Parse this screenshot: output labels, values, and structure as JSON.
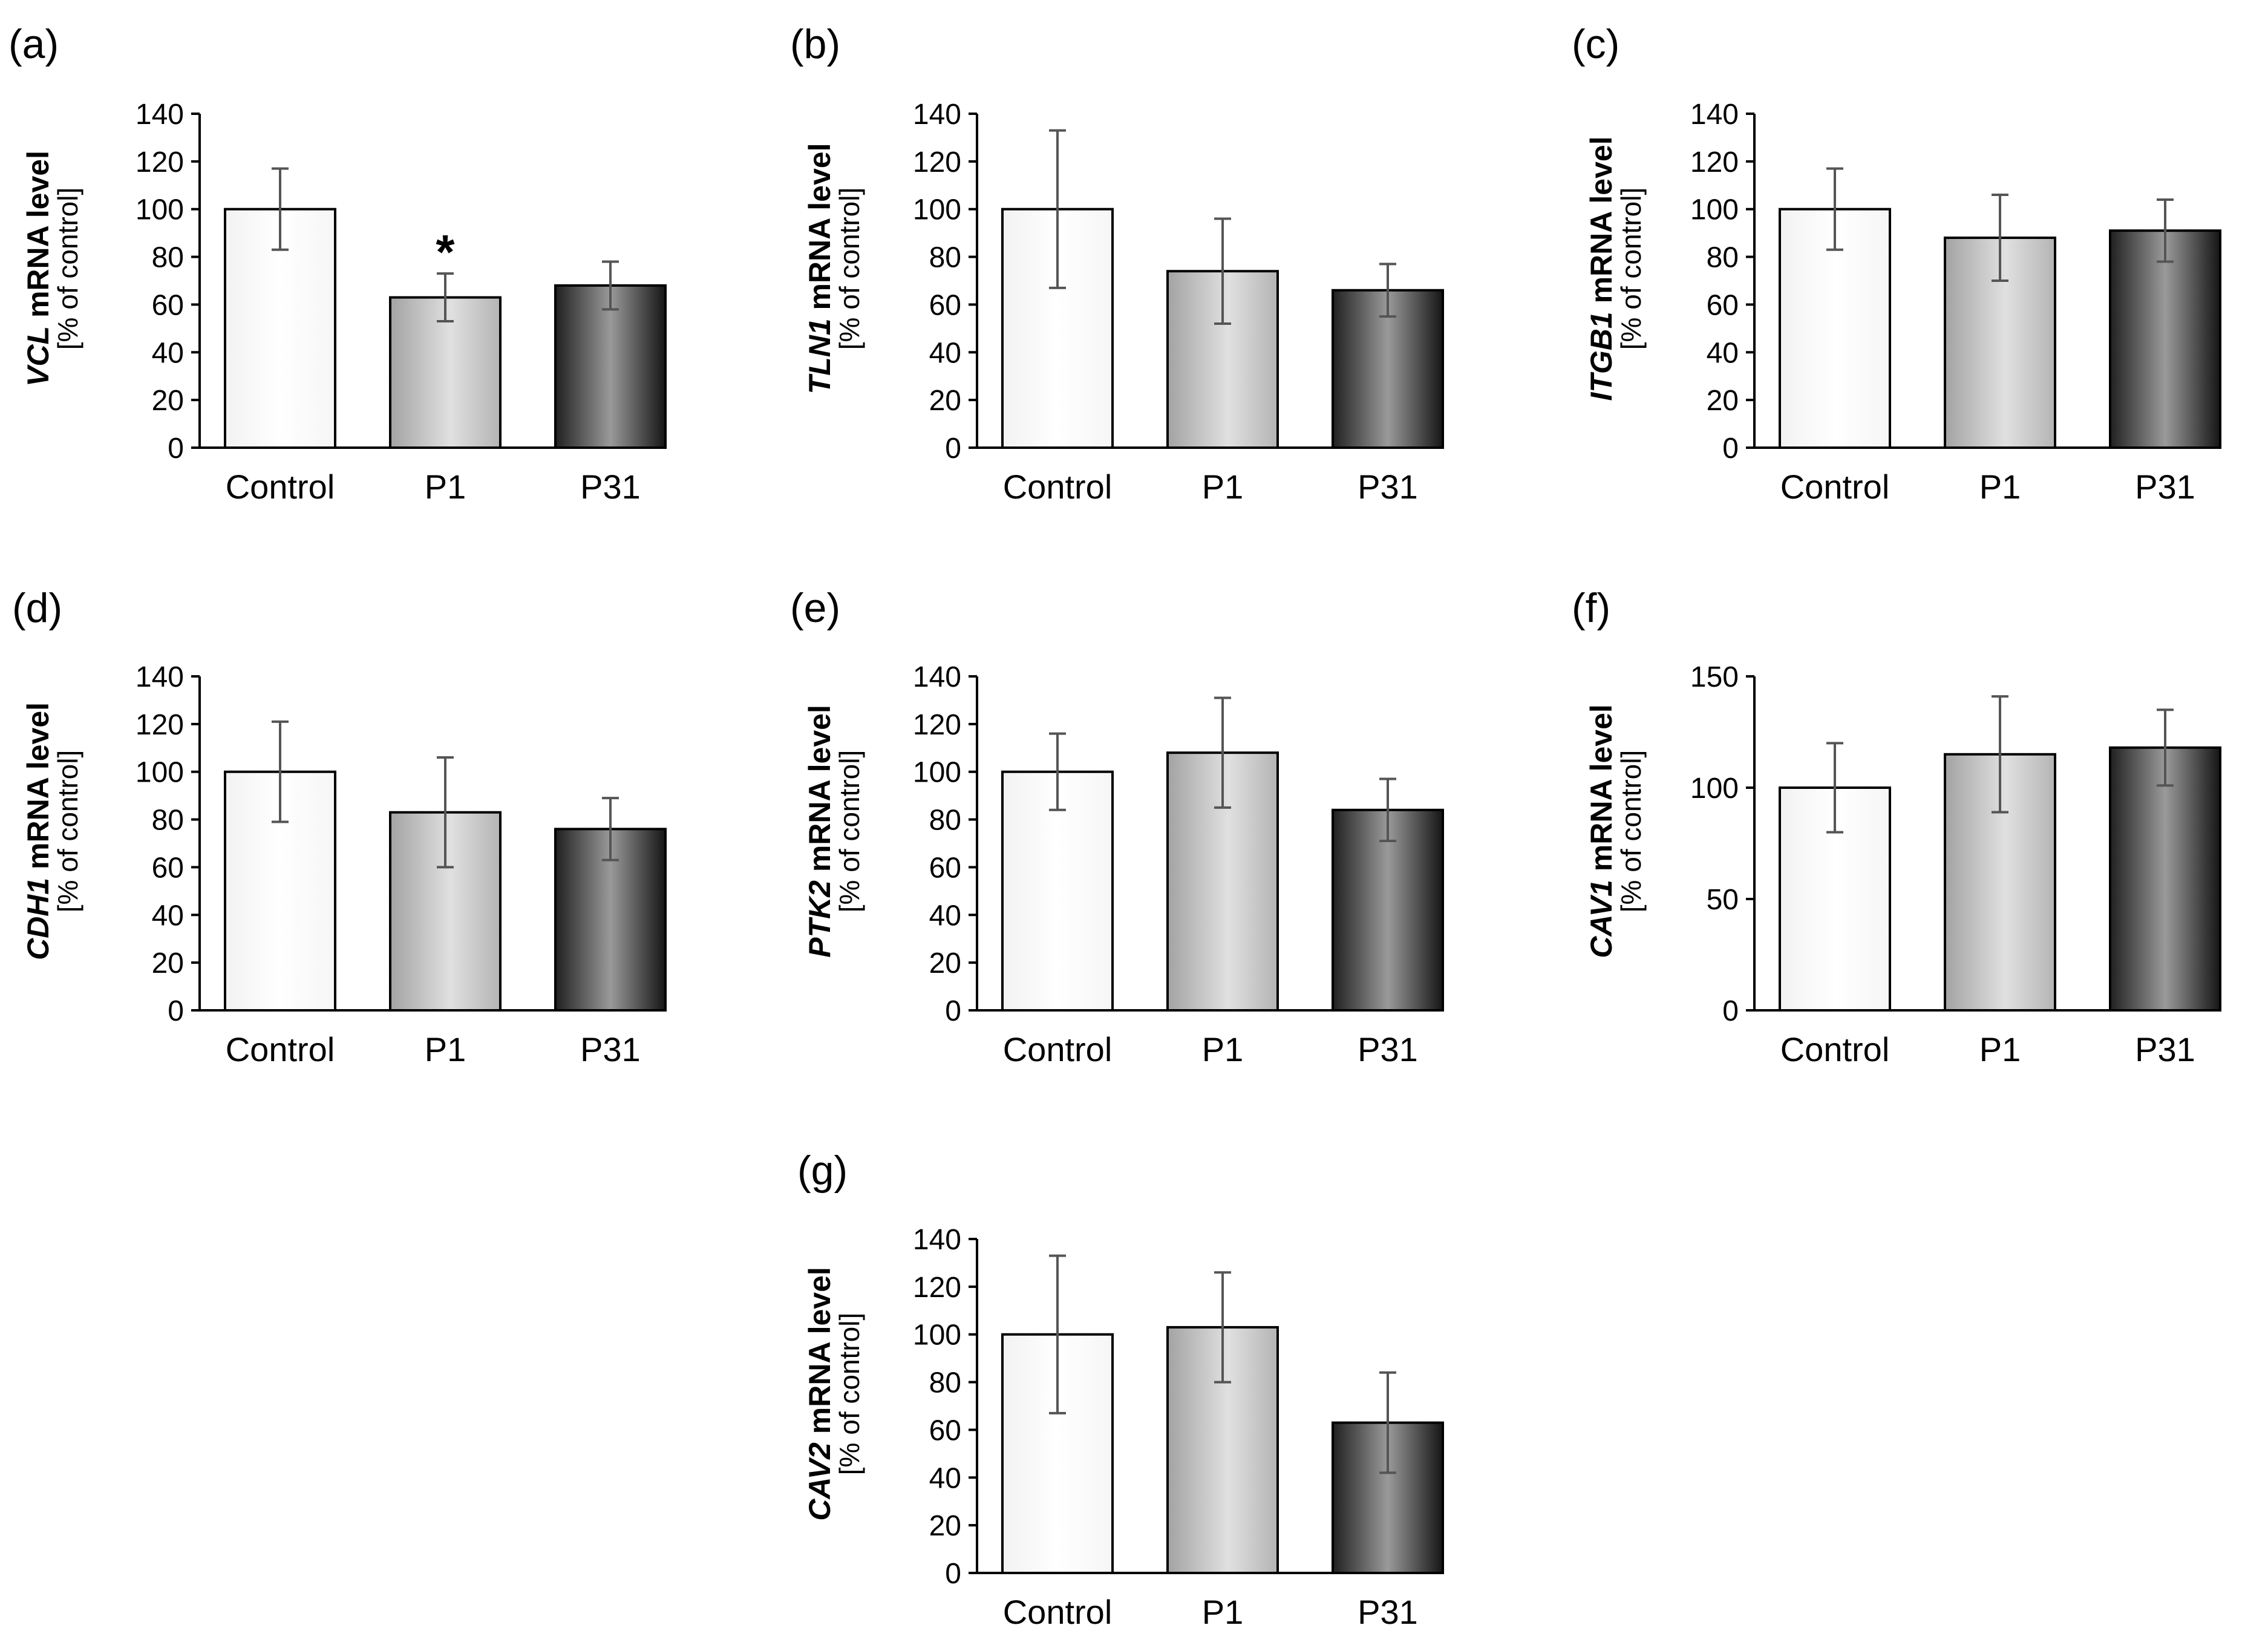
{
  "chart_data": [
    {
      "panel": "(a)",
      "type": "bar",
      "gene": "VCL",
      "ylabel_rest": " mRNA level",
      "ylabel_line2": "[% of control]",
      "categories": [
        "Control",
        "P1",
        "P31"
      ],
      "values": [
        100,
        63,
        68
      ],
      "errors": [
        17,
        10,
        10
      ],
      "ylim": [
        0,
        140
      ],
      "ticks": [
        0,
        20,
        40,
        60,
        80,
        100,
        120,
        140
      ],
      "annotations": [
        {
          "category": "P1",
          "text": "*"
        }
      ]
    },
    {
      "panel": "(b)",
      "type": "bar",
      "gene": "TLN1",
      "ylabel_rest": " mRNA level",
      "ylabel_line2": "[% of control]",
      "categories": [
        "Control",
        "P1",
        "P31"
      ],
      "values": [
        100,
        74,
        66
      ],
      "errors": [
        33,
        22,
        11
      ],
      "ylim": [
        0,
        140
      ],
      "ticks": [
        0,
        20,
        40,
        60,
        80,
        100,
        120,
        140
      ],
      "annotations": []
    },
    {
      "panel": "(c)",
      "type": "bar",
      "gene": "ITGB1",
      "ylabel_rest": " mRNA level",
      "ylabel_line2": "[% of control]",
      "categories": [
        "Control",
        "P1",
        "P31"
      ],
      "values": [
        100,
        88,
        91
      ],
      "errors": [
        17,
        18,
        13
      ],
      "ylim": [
        0,
        140
      ],
      "ticks": [
        0,
        20,
        40,
        60,
        80,
        100,
        120,
        140
      ],
      "annotations": []
    },
    {
      "panel": "(d)",
      "type": "bar",
      "gene": "CDH1",
      "ylabel_rest": " mRNA level",
      "ylabel_line2": "[% of control]",
      "categories": [
        "Control",
        "P1",
        "P31"
      ],
      "values": [
        100,
        83,
        76
      ],
      "errors": [
        21,
        23,
        13
      ],
      "ylim": [
        0,
        140
      ],
      "ticks": [
        0,
        20,
        40,
        60,
        80,
        100,
        120,
        140
      ],
      "annotations": []
    },
    {
      "panel": "(e)",
      "type": "bar",
      "gene": "PTK2",
      "ylabel_rest": " mRNA level",
      "ylabel_line2": "[% of control]",
      "categories": [
        "Control",
        "P1",
        "P31"
      ],
      "values": [
        100,
        108,
        84
      ],
      "errors": [
        16,
        23,
        13
      ],
      "ylim": [
        0,
        140
      ],
      "ticks": [
        0,
        20,
        40,
        60,
        80,
        100,
        120,
        140
      ],
      "annotations": []
    },
    {
      "panel": "(f)",
      "type": "bar",
      "gene": "CAV1",
      "ylabel_rest": " mRNA level",
      "ylabel_line2": "[% of control]",
      "categories": [
        "Control",
        "P1",
        "P31"
      ],
      "values": [
        100,
        115,
        118
      ],
      "errors": [
        20,
        26,
        17
      ],
      "ylim": [
        0,
        150
      ],
      "ticks": [
        0,
        50,
        100,
        150
      ],
      "annotations": []
    },
    {
      "panel": "(g)",
      "type": "bar",
      "gene": "CAV2",
      "ylabel_rest": " mRNA level",
      "ylabel_line2": "[% of control]",
      "categories": [
        "Control",
        "P1",
        "P31"
      ],
      "values": [
        100,
        103,
        63
      ],
      "errors": [
        33,
        23,
        21
      ],
      "ylim": [
        0,
        140
      ],
      "ticks": [
        0,
        20,
        40,
        60,
        80,
        100,
        120,
        140
      ],
      "annotations": []
    }
  ],
  "colors": {
    "axis": "#000000",
    "error_bar": "#555555",
    "control_fill": "#ffffff",
    "p1_light": "#e0e0e0",
    "p1_dark": "#a3a3a3",
    "p31_light": "#9a9a9a",
    "p31_dark": "#151515"
  }
}
